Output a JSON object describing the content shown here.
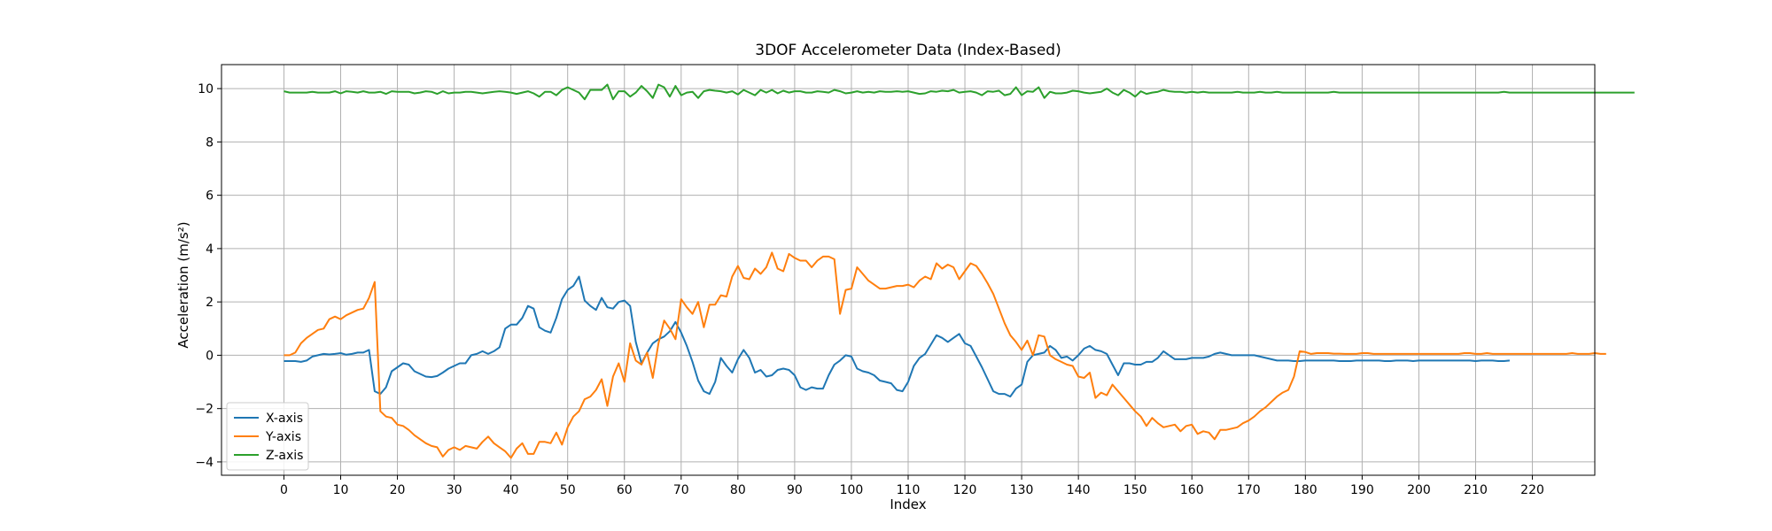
{
  "chart_data": {
    "type": "line",
    "title": "3DOF Accelerometer Data (Index-Based)",
    "xlabel": "Index",
    "ylabel": "Acceleration (m/s²)",
    "xlim": [
      -11,
      231
    ],
    "ylim": [
      -4.5,
      10.9
    ],
    "xticks": [
      0,
      10,
      20,
      30,
      40,
      50,
      60,
      70,
      80,
      90,
      100,
      110,
      120,
      130,
      140,
      150,
      160,
      170,
      180,
      190,
      200,
      210,
      220
    ],
    "yticks": [
      -4,
      -2,
      0,
      2,
      4,
      6,
      8,
      10
    ],
    "grid": true,
    "legend_position": "lower-left",
    "x_start": 0,
    "series": [
      {
        "name": "X-axis",
        "color": "#1f77b4",
        "values": [
          -0.22,
          -0.22,
          -0.22,
          -0.25,
          -0.2,
          -0.05,
          0.0,
          0.05,
          0.03,
          0.05,
          0.08,
          0.02,
          0.05,
          0.1,
          0.1,
          0.2,
          -1.35,
          -1.45,
          -1.2,
          -0.6,
          -0.45,
          -0.3,
          -0.35,
          -0.6,
          -0.7,
          -0.8,
          -0.82,
          -0.78,
          -0.65,
          -0.5,
          -0.4,
          -0.3,
          -0.3,
          0.0,
          0.05,
          0.15,
          0.05,
          0.15,
          0.3,
          1.0,
          1.15,
          1.15,
          1.4,
          1.85,
          1.75,
          1.05,
          0.92,
          0.85,
          1.4,
          2.1,
          2.45,
          2.6,
          2.95,
          2.05,
          1.85,
          1.7,
          2.15,
          1.8,
          1.75,
          2.0,
          2.05,
          1.85,
          0.5,
          -0.3,
          0.1,
          0.45,
          0.6,
          0.7,
          0.9,
          1.25,
          0.85,
          0.35,
          -0.25,
          -0.95,
          -1.35,
          -1.45,
          -1.0,
          -0.1,
          -0.4,
          -0.65,
          -0.15,
          0.2,
          -0.1,
          -0.65,
          -0.55,
          -0.8,
          -0.75,
          -0.55,
          -0.5,
          -0.55,
          -0.75,
          -1.2,
          -1.3,
          -1.2,
          -1.25,
          -1.25,
          -0.75,
          -0.35,
          -0.2,
          0.0,
          -0.05,
          -0.5,
          -0.6,
          -0.65,
          -0.75,
          -0.95,
          -1.0,
          -1.05,
          -1.3,
          -1.35,
          -1.0,
          -0.4,
          -0.1,
          0.05,
          0.4,
          0.75,
          0.65,
          0.5,
          0.65,
          0.8,
          0.45,
          0.35,
          -0.05,
          -0.45,
          -0.9,
          -1.35,
          -1.45,
          -1.45,
          -1.55,
          -1.25,
          -1.1,
          -0.25,
          0.0,
          0.05,
          0.1,
          0.35,
          0.2,
          -0.1,
          -0.05,
          -0.2,
          0.0,
          0.25,
          0.35,
          0.2,
          0.15,
          0.05,
          -0.35,
          -0.75,
          -0.3,
          -0.3,
          -0.35,
          -0.35,
          -0.25,
          -0.25,
          -0.1,
          0.15,
          0.0,
          -0.15,
          -0.15,
          -0.15,
          -0.1,
          -0.1,
          -0.1,
          -0.05,
          0.05,
          0.1,
          0.05,
          0.0,
          0.0,
          0.0,
          0.0,
          0.0,
          -0.05,
          -0.1,
          -0.15,
          -0.2,
          -0.2,
          -0.2,
          -0.22,
          -0.22,
          -0.2,
          -0.2,
          -0.2,
          -0.2,
          -0.2,
          -0.2,
          -0.22,
          -0.22,
          -0.22,
          -0.2,
          -0.2,
          -0.2,
          -0.2,
          -0.2,
          -0.22,
          -0.22,
          -0.2,
          -0.2,
          -0.2,
          -0.22,
          -0.2,
          -0.2,
          -0.2,
          -0.2,
          -0.2,
          -0.2,
          -0.2,
          -0.2,
          -0.2,
          -0.2,
          -0.22,
          -0.2,
          -0.2,
          -0.2,
          -0.22,
          -0.22,
          -0.2
        ],
        "_comment_ignore": null
      },
      {
        "name": "Y-axis",
        "color": "#ff7f0e",
        "values": [
          0.0,
          0.0,
          0.1,
          0.45,
          0.65,
          0.8,
          0.95,
          1.0,
          1.35,
          1.45,
          1.35,
          1.5,
          1.6,
          1.7,
          1.75,
          2.15,
          2.75,
          -2.1,
          -2.3,
          -2.35,
          -2.6,
          -2.65,
          -2.8,
          -3.0,
          -3.15,
          -3.3,
          -3.4,
          -3.45,
          -3.8,
          -3.55,
          -3.45,
          -3.55,
          -3.4,
          -3.45,
          -3.5,
          -3.25,
          -3.05,
          -3.3,
          -3.45,
          -3.6,
          -3.85,
          -3.5,
          -3.3,
          -3.7,
          -3.7,
          -3.25,
          -3.25,
          -3.3,
          -2.9,
          -3.35,
          -2.7,
          -2.3,
          -2.1,
          -1.65,
          -1.55,
          -1.3,
          -0.9,
          -1.9,
          -0.8,
          -0.3,
          -1.0,
          0.45,
          -0.2,
          -0.35,
          0.1,
          -0.85,
          0.45,
          1.3,
          1.0,
          0.6,
          2.1,
          1.8,
          1.55,
          2.0,
          1.05,
          1.9,
          1.9,
          2.25,
          2.2,
          2.95,
          3.35,
          2.9,
          2.85,
          3.25,
          3.05,
          3.3,
          3.85,
          3.25,
          3.15,
          3.8,
          3.65,
          3.55,
          3.55,
          3.3,
          3.55,
          3.7,
          3.7,
          3.6,
          1.55,
          2.45,
          2.5,
          3.3,
          3.05,
          2.8,
          2.65,
          2.5,
          2.5,
          2.55,
          2.6,
          2.6,
          2.65,
          2.55,
          2.8,
          2.95,
          2.85,
          3.45,
          3.25,
          3.4,
          3.3,
          2.85,
          3.15,
          3.45,
          3.35,
          3.05,
          2.7,
          2.3,
          1.75,
          1.2,
          0.75,
          0.5,
          0.2,
          0.55,
          0.0,
          0.75,
          0.7,
          0.0,
          -0.15,
          -0.25,
          -0.35,
          -0.4,
          -0.8,
          -0.85,
          -0.65,
          -1.6,
          -1.4,
          -1.5,
          -1.1,
          -1.35,
          -1.6,
          -1.85,
          -2.1,
          -2.3,
          -2.65,
          -2.35,
          -2.55,
          -2.7,
          -2.65,
          -2.6,
          -2.85,
          -2.65,
          -2.6,
          -2.95,
          -2.85,
          -2.9,
          -3.15,
          -2.8,
          -2.8,
          -2.75,
          -2.7,
          -2.55,
          -2.45,
          -2.3,
          -2.1,
          -1.95,
          -1.75,
          -1.55,
          -1.4,
          -1.3,
          -0.8,
          0.15,
          0.12,
          0.05,
          0.08,
          0.08,
          0.08,
          0.06,
          0.06,
          0.05,
          0.05,
          0.05,
          0.08,
          0.08,
          0.05,
          0.05,
          0.05,
          0.05,
          0.05,
          0.05,
          0.05,
          0.05,
          0.05,
          0.05,
          0.05,
          0.05,
          0.05,
          0.05,
          0.05,
          0.05,
          0.08,
          0.08,
          0.05,
          0.05,
          0.08,
          0.05,
          0.05,
          0.05,
          0.05,
          0.05,
          0.05,
          0.05,
          0.05,
          0.05,
          0.05,
          0.05,
          0.05,
          0.05,
          0.05,
          0.08,
          0.05,
          0.05,
          0.05,
          0.08,
          0.05,
          0.05
        ]
      },
      {
        "name": "Z-axis",
        "color": "#2ca02c",
        "values": [
          9.9,
          9.85,
          9.85,
          9.85,
          9.85,
          9.88,
          9.85,
          9.85,
          9.85,
          9.9,
          9.82,
          9.9,
          9.88,
          9.85,
          9.9,
          9.85,
          9.85,
          9.88,
          9.8,
          9.9,
          9.88,
          9.88,
          9.88,
          9.82,
          9.85,
          9.9,
          9.88,
          9.8,
          9.9,
          9.82,
          9.85,
          9.85,
          9.88,
          9.88,
          9.85,
          9.82,
          9.85,
          9.88,
          9.9,
          9.88,
          9.85,
          9.8,
          9.85,
          9.9,
          9.82,
          9.7,
          9.88,
          9.88,
          9.75,
          9.95,
          10.05,
          9.95,
          9.85,
          9.6,
          9.95,
          9.95,
          9.95,
          10.15,
          9.6,
          9.9,
          9.9,
          9.7,
          9.85,
          10.1,
          9.9,
          9.65,
          10.15,
          10.05,
          9.7,
          10.1,
          9.75,
          9.85,
          9.88,
          9.65,
          9.9,
          9.95,
          9.92,
          9.9,
          9.85,
          9.9,
          9.78,
          9.95,
          9.85,
          9.75,
          9.95,
          9.85,
          9.95,
          9.82,
          9.92,
          9.85,
          9.9,
          9.9,
          9.85,
          9.85,
          9.9,
          9.88,
          9.85,
          9.95,
          9.9,
          9.82,
          9.85,
          9.9,
          9.85,
          9.88,
          9.85,
          9.9,
          9.88,
          9.88,
          9.9,
          9.88,
          9.9,
          9.85,
          9.8,
          9.82,
          9.9,
          9.88,
          9.92,
          9.9,
          9.95,
          9.85,
          9.88,
          9.9,
          9.85,
          9.75,
          9.9,
          9.88,
          9.92,
          9.75,
          9.8,
          10.05,
          9.75,
          9.9,
          9.88,
          10.05,
          9.65,
          9.88,
          9.82,
          9.82,
          9.85,
          9.92,
          9.9,
          9.85,
          9.82,
          9.85,
          9.88,
          10.0,
          9.85,
          9.75,
          9.95,
          9.85,
          9.7,
          9.9,
          9.8,
          9.85,
          9.88,
          9.95,
          9.9,
          9.88,
          9.88,
          9.85,
          9.88,
          9.85,
          9.88,
          9.85,
          9.85,
          9.85,
          9.85,
          9.85,
          9.88,
          9.85,
          9.85,
          9.85,
          9.88,
          9.85,
          9.85,
          9.88,
          9.85,
          9.85,
          9.85,
          9.85,
          9.85,
          9.85,
          9.85,
          9.85,
          9.85,
          9.88,
          9.85,
          9.85,
          9.85,
          9.85,
          9.85,
          9.85,
          9.85,
          9.85,
          9.85,
          9.85,
          9.85,
          9.85,
          9.85,
          9.85,
          9.85,
          9.85,
          9.85,
          9.85,
          9.85,
          9.85,
          9.85,
          9.85,
          9.85,
          9.85,
          9.85,
          9.85,
          9.85,
          9.85,
          9.85,
          9.88,
          9.85,
          9.85,
          9.85,
          9.85,
          9.85,
          9.85,
          9.85,
          9.85,
          9.85,
          9.85,
          9.85,
          9.85,
          9.85,
          9.85,
          9.85,
          9.85,
          9.85,
          9.85,
          9.85,
          9.85,
          9.85,
          9.85,
          9.85
        ]
      }
    ]
  }
}
